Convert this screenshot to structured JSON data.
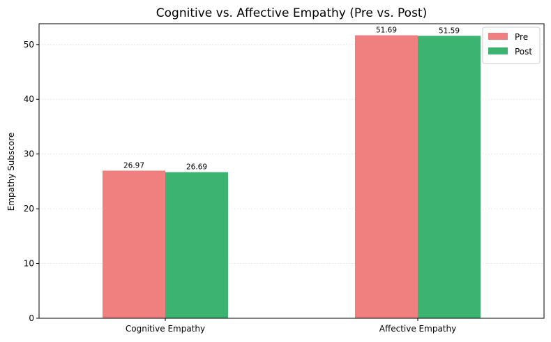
{
  "chart_data": {
    "type": "bar",
    "title": "Cognitive vs. Affective Empathy (Pre vs. Post)",
    "xlabel": "",
    "ylabel": "Empathy Subscore",
    "categories": [
      "Cognitive Empathy",
      "Affective Empathy"
    ],
    "series": [
      {
        "name": "Pre",
        "values": [
          26.97,
          51.69
        ],
        "labels": [
          "26.97",
          "51.69"
        ],
        "color": "#f08080"
      },
      {
        "name": "Post",
        "values": [
          26.69,
          51.59
        ],
        "labels": [
          "26.69",
          "51.59"
        ],
        "color": "#3cb371"
      }
    ],
    "ylim": [
      0,
      53.8
    ],
    "yticks": [
      0,
      10,
      20,
      30,
      40,
      50
    ],
    "ytick_labels": [
      "0",
      "10",
      "20",
      "30",
      "40",
      "50"
    ],
    "grid": "y-dotted",
    "legend": "top-right"
  }
}
